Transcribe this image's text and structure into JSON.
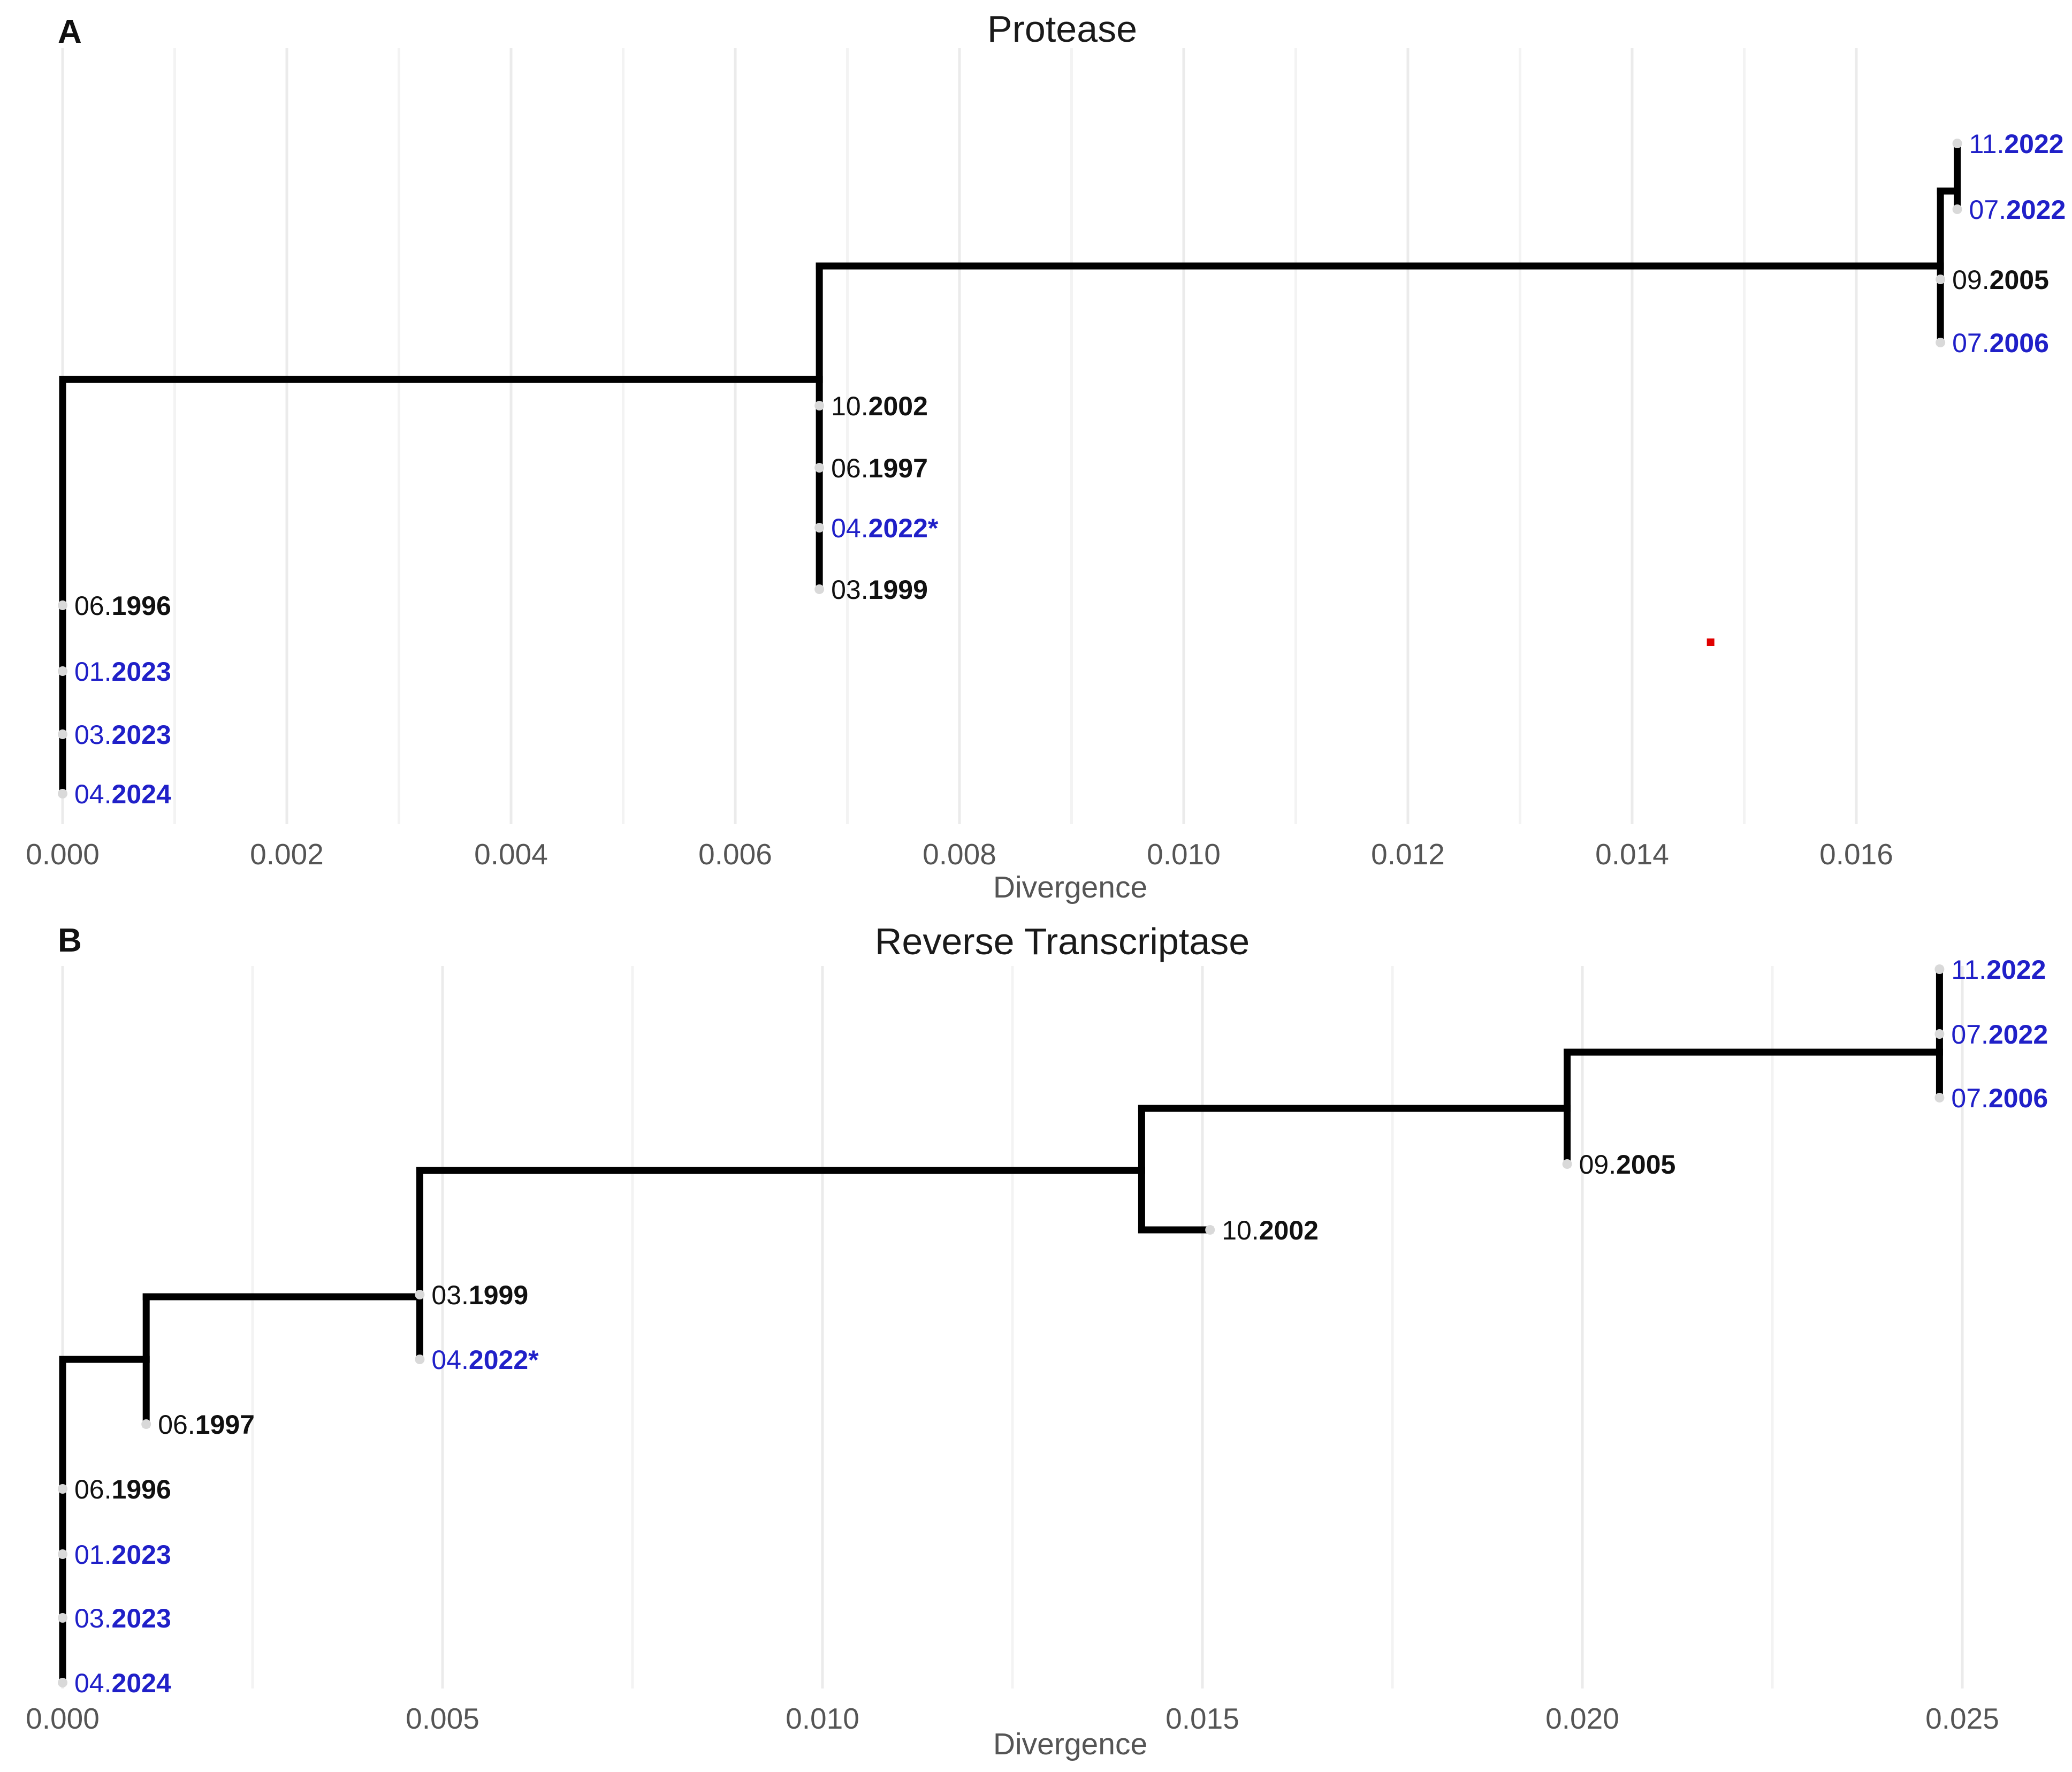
{
  "colors": {
    "black_label": "#111111",
    "blue_label": "#2020c8",
    "branch": "#000000",
    "grid": "#ebebeb",
    "marker": "#e00000"
  },
  "chart_data": [
    {
      "type": "tree",
      "panel": "A",
      "title": "Protease",
      "xlabel": "Divergence",
      "xlim": [
        0,
        0.017
      ],
      "ticks": [
        "0.000",
        "0.002",
        "0.004",
        "0.006",
        "0.008",
        "0.010",
        "0.012",
        "0.014",
        "0.016"
      ],
      "tick_values": [
        0,
        0.002,
        0.004,
        0.006,
        0.008,
        0.01,
        0.012,
        0.014,
        0.016
      ],
      "leaves": [
        {
          "prefix": "11.",
          "year": "2022",
          "divergence": 0.0169,
          "blue": true
        },
        {
          "prefix": "07.",
          "year": "2022",
          "divergence": 0.0169,
          "blue": true
        },
        {
          "prefix": "09.",
          "year": "2005",
          "divergence": 0.01675,
          "blue": false
        },
        {
          "prefix": "07.",
          "year": "2006",
          "divergence": 0.01675,
          "blue": true
        },
        {
          "prefix": "10.",
          "year": "2002",
          "divergence": 0.00675,
          "blue": false
        },
        {
          "prefix": "06.",
          "year": "1997",
          "divergence": 0.00675,
          "blue": false
        },
        {
          "prefix": "04.",
          "year": "2022*",
          "divergence": 0.00675,
          "blue": true
        },
        {
          "prefix": "03.",
          "year": "1999",
          "divergence": 0.00675,
          "blue": false
        },
        {
          "prefix": "06.",
          "year": "1996",
          "divergence": 0.0,
          "blue": false
        },
        {
          "prefix": "01.",
          "year": "2023",
          "divergence": 0.0,
          "blue": true
        },
        {
          "prefix": "03.",
          "year": "2023",
          "divergence": 0.0,
          "blue": true
        },
        {
          "prefix": "04.",
          "year": "2024",
          "divergence": 0.0,
          "blue": true
        }
      ],
      "marker_divergence": 0.0147
    },
    {
      "type": "tree",
      "panel": "B",
      "title": "Reverse Transcriptase",
      "xlabel": "Divergence",
      "xlim": [
        0,
        0.025
      ],
      "ticks": [
        "0.000",
        "0.005",
        "0.010",
        "0.015",
        "0.020",
        "0.025"
      ],
      "tick_values": [
        0,
        0.005,
        0.01,
        0.015,
        0.02,
        0.025
      ],
      "leaves": [
        {
          "prefix": "11.",
          "year": "2022",
          "divergence": 0.0247,
          "blue": true
        },
        {
          "prefix": "07.",
          "year": "2022",
          "divergence": 0.0247,
          "blue": true
        },
        {
          "prefix": "07.",
          "year": "2006",
          "divergence": 0.0247,
          "blue": true
        },
        {
          "prefix": "09.",
          "year": "2005",
          "divergence": 0.0198,
          "blue": false
        },
        {
          "prefix": "10.",
          "year": "2002",
          "divergence": 0.0151,
          "blue": false
        },
        {
          "prefix": "03.",
          "year": "1999",
          "divergence": 0.0047,
          "blue": false
        },
        {
          "prefix": "04.",
          "year": "2022*",
          "divergence": 0.0047,
          "blue": true
        },
        {
          "prefix": "06.",
          "year": "1997",
          "divergence": 0.0011,
          "blue": false
        },
        {
          "prefix": "06.",
          "year": "1996",
          "divergence": 0.0,
          "blue": false
        },
        {
          "prefix": "01.",
          "year": "2023",
          "divergence": 0.0,
          "blue": true
        },
        {
          "prefix": "03.",
          "year": "2023",
          "divergence": 0.0,
          "blue": true
        },
        {
          "prefix": "04.",
          "year": "2024",
          "divergence": 0.0,
          "blue": true
        }
      ]
    }
  ]
}
